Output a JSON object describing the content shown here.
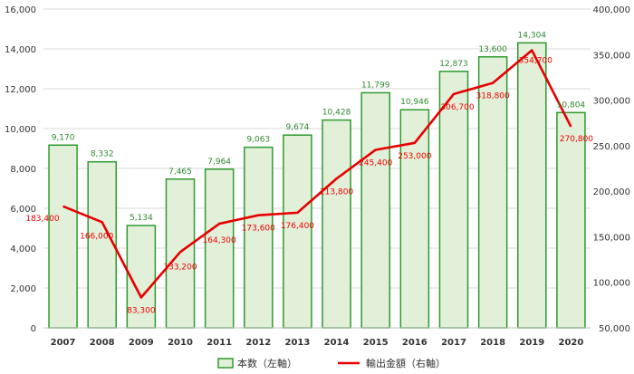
{
  "chart_data": {
    "type": "bar",
    "categories": [
      "2007",
      "2008",
      "2009",
      "2010",
      "2011",
      "2012",
      "2013",
      "2014",
      "2015",
      "2016",
      "2017",
      "2018",
      "2019",
      "2020"
    ],
    "series": [
      {
        "name": "本数（左軸）",
        "kind": "bar",
        "axis": "left",
        "values": [
          9170,
          8332,
          5134,
          7465,
          7964,
          9063,
          9674,
          10428,
          11799,
          10946,
          12873,
          13600,
          14304,
          10804
        ],
        "labels": [
          "9,170",
          "8,332",
          "5,134",
          "7,465",
          "7,964",
          "9,063",
          "9,674",
          "10,428",
          "11,799",
          "10,946",
          "12,873",
          "13,600",
          "14,304",
          "10,804"
        ],
        "fill": "#e2f0d9",
        "stroke": "#2e9b2e"
      },
      {
        "name": "輸出金額（右軸）",
        "kind": "line",
        "axis": "right",
        "values": [
          183400,
          166000,
          83300,
          133200,
          164300,
          173600,
          176400,
          213800,
          245400,
          253000,
          306700,
          318800,
          354700,
          270800
        ],
        "labels": [
          "183,400",
          "166,000",
          "83,300",
          "133,200",
          "164,300",
          "173,600",
          "176,400",
          "213,800",
          "245,400",
          "253,000",
          "306,700",
          "318,800",
          "354,700",
          "270,800"
        ],
        "color": "#e60000"
      }
    ],
    "y_left": {
      "range": [
        0,
        16000
      ],
      "ticks": [
        0,
        2000,
        4000,
        6000,
        8000,
        10000,
        12000,
        14000,
        16000
      ],
      "tick_labels": [
        "0",
        "2,000",
        "4,000",
        "6,000",
        "8,000",
        "10,000",
        "12,000",
        "14,000",
        "16,000"
      ]
    },
    "y_right": {
      "range": [
        50000,
        400000
      ],
      "ticks": [
        50000,
        100000,
        150000,
        200000,
        250000,
        300000,
        350000,
        400000
      ],
      "tick_labels": [
        "50,000",
        "100,000",
        "150,000",
        "200,000",
        "250,000",
        "300,000",
        "350,000",
        "400,000"
      ]
    },
    "grid": true,
    "legend_position": "bottom"
  }
}
